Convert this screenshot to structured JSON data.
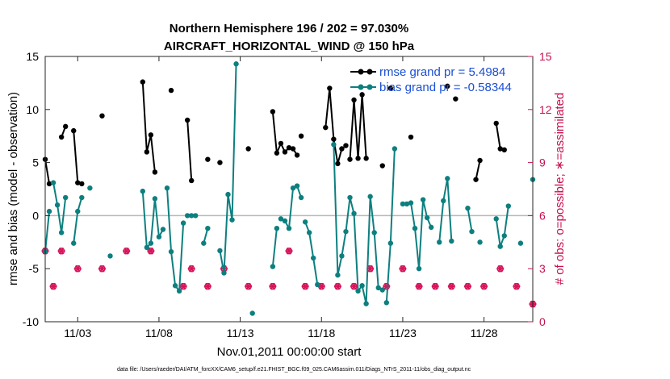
{
  "chart_data": {
    "type": "line",
    "title_line1": "Northern Hemisphere 196 / 202 = 97.030%",
    "title_line2": "AIRCRAFT_HORIZONTAL_WIND @ 150 hPa",
    "xlabel": "Nov.01,2011 00:00:00 start",
    "ylabel_left": "rmse and bias (model - observation)",
    "ylabel_right": "# of obs: o=possible; ∗=assimilated",
    "xlim": [
      1,
      31
    ],
    "ylim_left": [
      -10,
      15
    ],
    "ylim_right": [
      0,
      15
    ],
    "x_ticks": [
      3,
      8,
      13,
      18,
      23,
      28
    ],
    "x_tick_labels": [
      "11/03",
      "11/08",
      "11/13",
      "11/18",
      "11/23",
      "11/28"
    ],
    "y_ticks_left": [
      -10,
      -5,
      0,
      5,
      10,
      15
    ],
    "y_ticks_right": [
      0,
      3,
      6,
      9,
      12,
      15
    ],
    "footer": "data file: /Users/raeder/DAI/ATM_forcXX/CAM6_setup/f.e21.FHIST_BGC.f09_025.CAM6assim.011/Diags_NTrS_2011-11/obs_diag_output.nc",
    "series": [
      {
        "name": "rmse grand pr = 5.4984",
        "color": "#000000",
        "segments": [
          [
            [
              1.0,
              5.3
            ],
            [
              1.25,
              3.0
            ]
          ],
          [
            [
              2.0,
              7.4
            ],
            [
              2.25,
              8.4
            ]
          ],
          [
            [
              2.75,
              8.0
            ],
            [
              3.0,
              3.1
            ],
            [
              3.25,
              3.0
            ]
          ],
          [
            [
              4.5,
              9.4
            ]
          ],
          [
            [
              7.0,
              12.6
            ],
            [
              7.25,
              6.0
            ],
            [
              7.5,
              7.6
            ],
            [
              7.75,
              4.1
            ]
          ],
          [
            [
              8.75,
              11.8
            ]
          ],
          [
            [
              9.75,
              9.0
            ],
            [
              10.0,
              3.3
            ]
          ],
          [
            [
              11.0,
              5.3
            ]
          ],
          [
            [
              11.75,
              5.0
            ]
          ],
          [
            [
              13.5,
              6.3
            ]
          ],
          [
            [
              15.0,
              9.8
            ],
            [
              15.25,
              5.9
            ],
            [
              15.5,
              6.8
            ],
            [
              15.75,
              6.0
            ],
            [
              16.0,
              6.4
            ],
            [
              16.25,
              6.3
            ],
            [
              16.5,
              5.7
            ]
          ],
          [
            [
              16.75,
              7.5
            ]
          ],
          [
            [
              18.25,
              8.3
            ],
            [
              18.5,
              12.0
            ],
            [
              18.75,
              7.2
            ],
            [
              19.0,
              4.9
            ],
            [
              19.25,
              6.3
            ],
            [
              19.5,
              6.6
            ]
          ],
          [
            [
              19.75,
              5.3
            ],
            [
              20.0,
              10.9
            ],
            [
              20.25,
              5.4
            ],
            [
              20.5,
              11.4
            ],
            [
              20.75,
              5.4
            ]
          ],
          [
            [
              21.75,
              4.7
            ]
          ],
          [
            [
              22.25,
              12.0
            ]
          ],
          [
            [
              23.5,
              7.4
            ]
          ],
          [
            [
              25.75,
              12.2
            ]
          ],
          [
            [
              26.25,
              11.0
            ]
          ],
          [
            [
              27.5,
              3.4
            ],
            [
              27.75,
              5.2
            ]
          ],
          [
            [
              28.75,
              8.7
            ],
            [
              29.0,
              6.3
            ],
            [
              29.25,
              6.2
            ]
          ]
        ]
      },
      {
        "name": "bias grand pr = -0.58344",
        "color": "#0d7f7f",
        "segments": [
          [
            [
              1.0,
              -3.4
            ],
            [
              1.25,
              0.4
            ]
          ],
          [
            [
              1.5,
              3.1
            ],
            [
              1.75,
              1.0
            ],
            [
              2.0,
              -1.6
            ],
            [
              2.25,
              1.7
            ]
          ],
          [
            [
              2.75,
              -2.6
            ],
            [
              3.0,
              0.4
            ],
            [
              3.25,
              1.7
            ]
          ],
          [
            [
              3.75,
              2.6
            ]
          ],
          [
            [
              5.0,
              -3.8
            ]
          ],
          [
            [
              7.0,
              2.3
            ],
            [
              7.25,
              -3.0
            ],
            [
              7.5,
              -2.6
            ],
            [
              7.75,
              1.6
            ],
            [
              8.0,
              -2.0
            ],
            [
              8.25,
              -1.3
            ]
          ],
          [
            [
              8.5,
              2.6
            ],
            [
              8.75,
              -3.4
            ],
            [
              9.0,
              -6.6
            ],
            [
              9.25,
              -7.1
            ],
            [
              9.5,
              -0.7
            ]
          ],
          [
            [
              9.75,
              0.0
            ],
            [
              10.0,
              0.0
            ],
            [
              10.25,
              0.0
            ]
          ],
          [
            [
              10.75,
              -2.6
            ],
            [
              11.0,
              -1.2
            ]
          ],
          [
            [
              11.75,
              -3.3
            ],
            [
              12.0,
              -5.4
            ],
            [
              12.25,
              2.0
            ],
            [
              12.5,
              -0.4
            ],
            [
              12.75,
              14.3
            ]
          ],
          [
            [
              13.75,
              -9.2
            ]
          ],
          [
            [
              15.0,
              -4.8
            ],
            [
              15.25,
              -1.2
            ]
          ],
          [
            [
              15.5,
              -0.3
            ],
            [
              15.75,
              -0.5
            ],
            [
              16.0,
              -1.2
            ],
            [
              16.25,
              2.6
            ],
            [
              16.5,
              2.8
            ],
            [
              16.75,
              1.7
            ]
          ],
          [
            [
              17.0,
              -0.6
            ],
            [
              17.25,
              -1.6
            ],
            [
              17.5,
              -4.0
            ],
            [
              17.75,
              -6.5
            ]
          ],
          [
            [
              18.75,
              6.7
            ],
            [
              19.0,
              -5.6
            ],
            [
              19.25,
              -3.8
            ],
            [
              19.5,
              -1.5
            ],
            [
              19.75,
              1.7
            ],
            [
              20.0,
              0.2
            ],
            [
              20.25,
              -7.1
            ],
            [
              20.5,
              -6.6
            ],
            [
              20.75,
              -8.3
            ],
            [
              21.0,
              1.8
            ],
            [
              21.25,
              -1.6
            ],
            [
              21.5,
              -6.8
            ],
            [
              21.75,
              -7.0
            ]
          ],
          [
            [
              22.0,
              -8.2
            ],
            [
              22.25,
              -2.6
            ],
            [
              22.5,
              6.3
            ]
          ],
          [
            [
              23.0,
              1.1
            ],
            [
              23.25,
              1.1
            ],
            [
              23.5,
              1.2
            ],
            [
              23.75,
              -1.2
            ],
            [
              24.0,
              -5.0
            ],
            [
              24.25,
              1.5
            ],
            [
              24.5,
              -0.2
            ],
            [
              24.75,
              -1.1
            ]
          ],
          [
            [
              25.25,
              -2.5
            ],
            [
              25.5,
              1.4
            ],
            [
              25.75,
              3.5
            ],
            [
              26.0,
              -2.4
            ]
          ],
          [
            [
              27.0,
              0.7
            ],
            [
              27.25,
              -1.5
            ]
          ],
          [
            [
              27.75,
              -2.5
            ]
          ],
          [
            [
              28.75,
              -0.3
            ],
            [
              29.0,
              -2.9
            ],
            [
              29.25,
              -1.9
            ],
            [
              29.5,
              0.9
            ]
          ],
          [
            [
              30.25,
              -2.6
            ]
          ],
          [
            [
              31.0,
              3.4
            ]
          ]
        ]
      }
    ],
    "obs_possible": [
      [
        1,
        4
      ],
      [
        1.5,
        2
      ],
      [
        2,
        4
      ],
      [
        3,
        3
      ],
      [
        4.5,
        3
      ],
      [
        6,
        4
      ],
      [
        7.5,
        4
      ],
      [
        9.5,
        2
      ],
      [
        10,
        3
      ],
      [
        11,
        2
      ],
      [
        12,
        3
      ],
      [
        13.5,
        2
      ],
      [
        15,
        2
      ],
      [
        16,
        4
      ],
      [
        17,
        2
      ],
      [
        18,
        2
      ],
      [
        19,
        2
      ],
      [
        20,
        2
      ],
      [
        21,
        3
      ],
      [
        22,
        2
      ],
      [
        23,
        3
      ],
      [
        24,
        2
      ],
      [
        25,
        2
      ],
      [
        26,
        2
      ],
      [
        27,
        2
      ],
      [
        28,
        2
      ],
      [
        29,
        3
      ],
      [
        30,
        2
      ],
      [
        31,
        1
      ]
    ],
    "obs_assimilated": [
      [
        1,
        4
      ],
      [
        1.5,
        2
      ],
      [
        2,
        4
      ],
      [
        3,
        3
      ],
      [
        4.5,
        3
      ],
      [
        6,
        4
      ],
      [
        7.5,
        4
      ],
      [
        9.5,
        2
      ],
      [
        10,
        3
      ],
      [
        11,
        2
      ],
      [
        12,
        3
      ],
      [
        13.5,
        2
      ],
      [
        15,
        2
      ],
      [
        16,
        4
      ],
      [
        17,
        2
      ],
      [
        18,
        2
      ],
      [
        19,
        2
      ],
      [
        20,
        2
      ],
      [
        21,
        3
      ],
      [
        22,
        2
      ],
      [
        23,
        3
      ],
      [
        24,
        2
      ],
      [
        25,
        2
      ],
      [
        26,
        2
      ],
      [
        27,
        2
      ],
      [
        28,
        2
      ],
      [
        29,
        3
      ],
      [
        30,
        2
      ],
      [
        31,
        1
      ]
    ]
  }
}
